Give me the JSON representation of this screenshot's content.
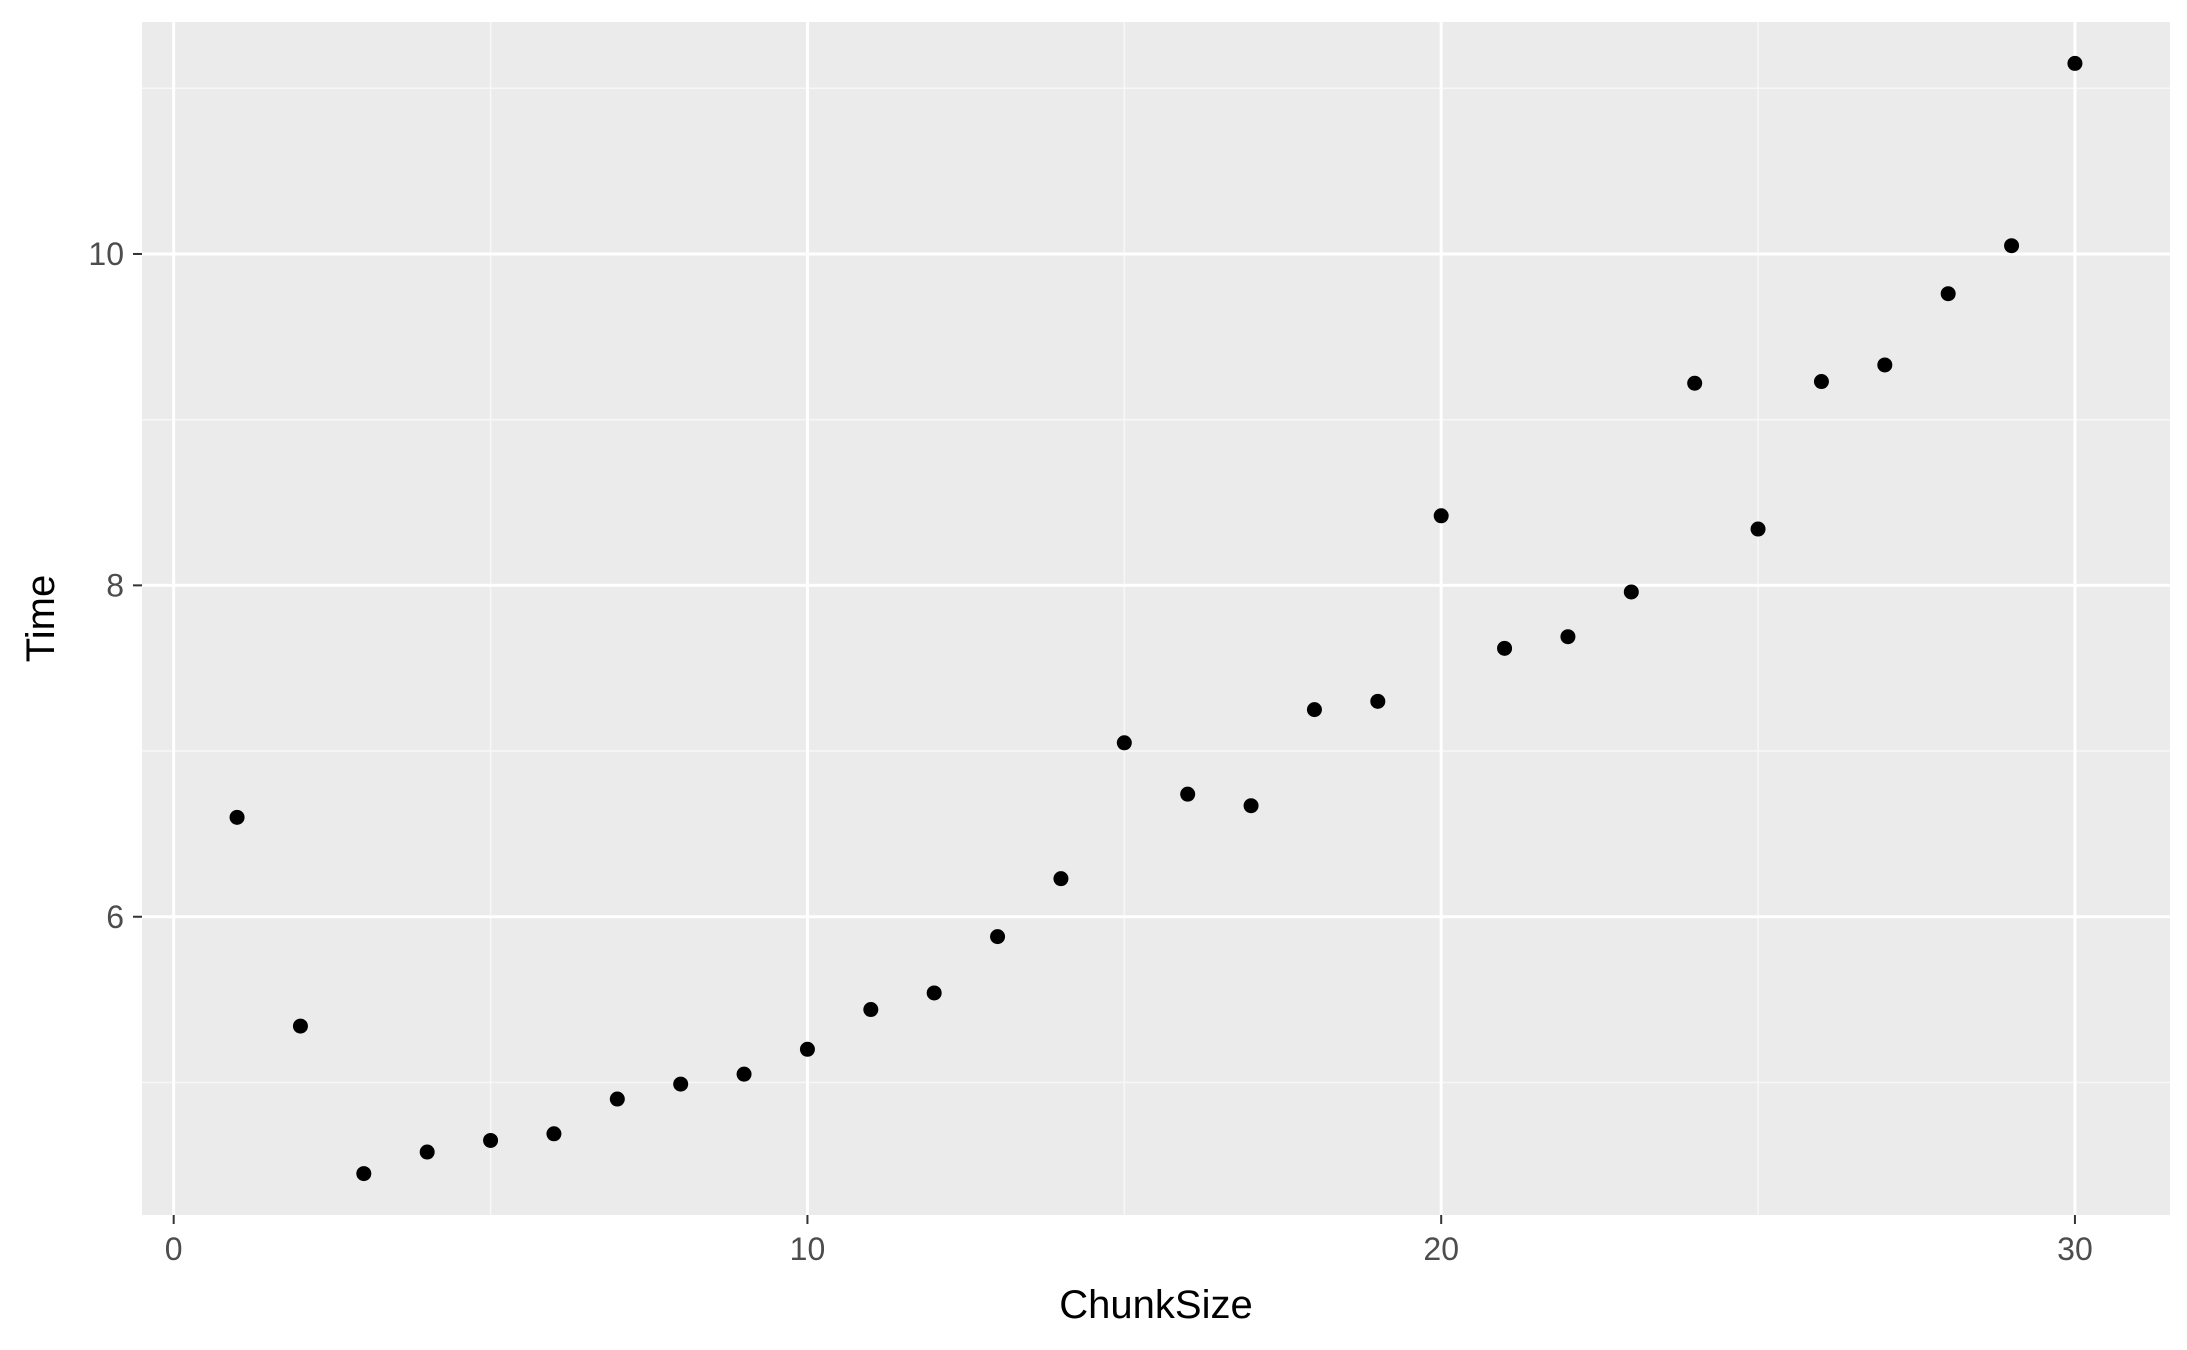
{
  "chart_data": {
    "type": "scatter",
    "title": "",
    "xlabel": "ChunkSize",
    "ylabel": "Time",
    "xlim": [
      -0.5,
      31.5
    ],
    "ylim": [
      4.2,
      11.4
    ],
    "x_ticks": [
      0,
      10,
      20,
      30
    ],
    "x_minor_ticks": [
      5,
      15,
      25
    ],
    "x_tick_labels": [
      "0",
      "10",
      "20",
      "30"
    ],
    "y_ticks": [
      6,
      8,
      10
    ],
    "y_minor_ticks": [
      5,
      7,
      9,
      11
    ],
    "y_tick_labels": [
      "6",
      "8",
      "10"
    ],
    "grid": true,
    "legend": "none",
    "series": [
      {
        "x": [
          1,
          2,
          3,
          4,
          5,
          6,
          7,
          8,
          9,
          10,
          11,
          12,
          13,
          14,
          15,
          16,
          17,
          18,
          19,
          20,
          21,
          22,
          23,
          24,
          25,
          26,
          27,
          28,
          29,
          30
        ],
        "y": [
          6.6,
          5.34,
          4.45,
          4.58,
          4.65,
          4.69,
          4.9,
          4.99,
          5.05,
          5.2,
          5.44,
          5.54,
          5.88,
          6.23,
          7.05,
          6.74,
          6.67,
          7.25,
          7.3,
          8.42,
          7.62,
          7.69,
          7.96,
          9.22,
          8.34,
          9.23,
          9.33,
          9.76,
          10.05,
          11.15
        ]
      }
    ]
  },
  "colors": {
    "panel_background": "#ebebeb",
    "grid_major": "#ffffff",
    "grid_minor": "#f7f7f7",
    "point": "#000000",
    "tick": "#333333",
    "tick_label": "#4d4d4d",
    "axis_title": "#000000"
  }
}
